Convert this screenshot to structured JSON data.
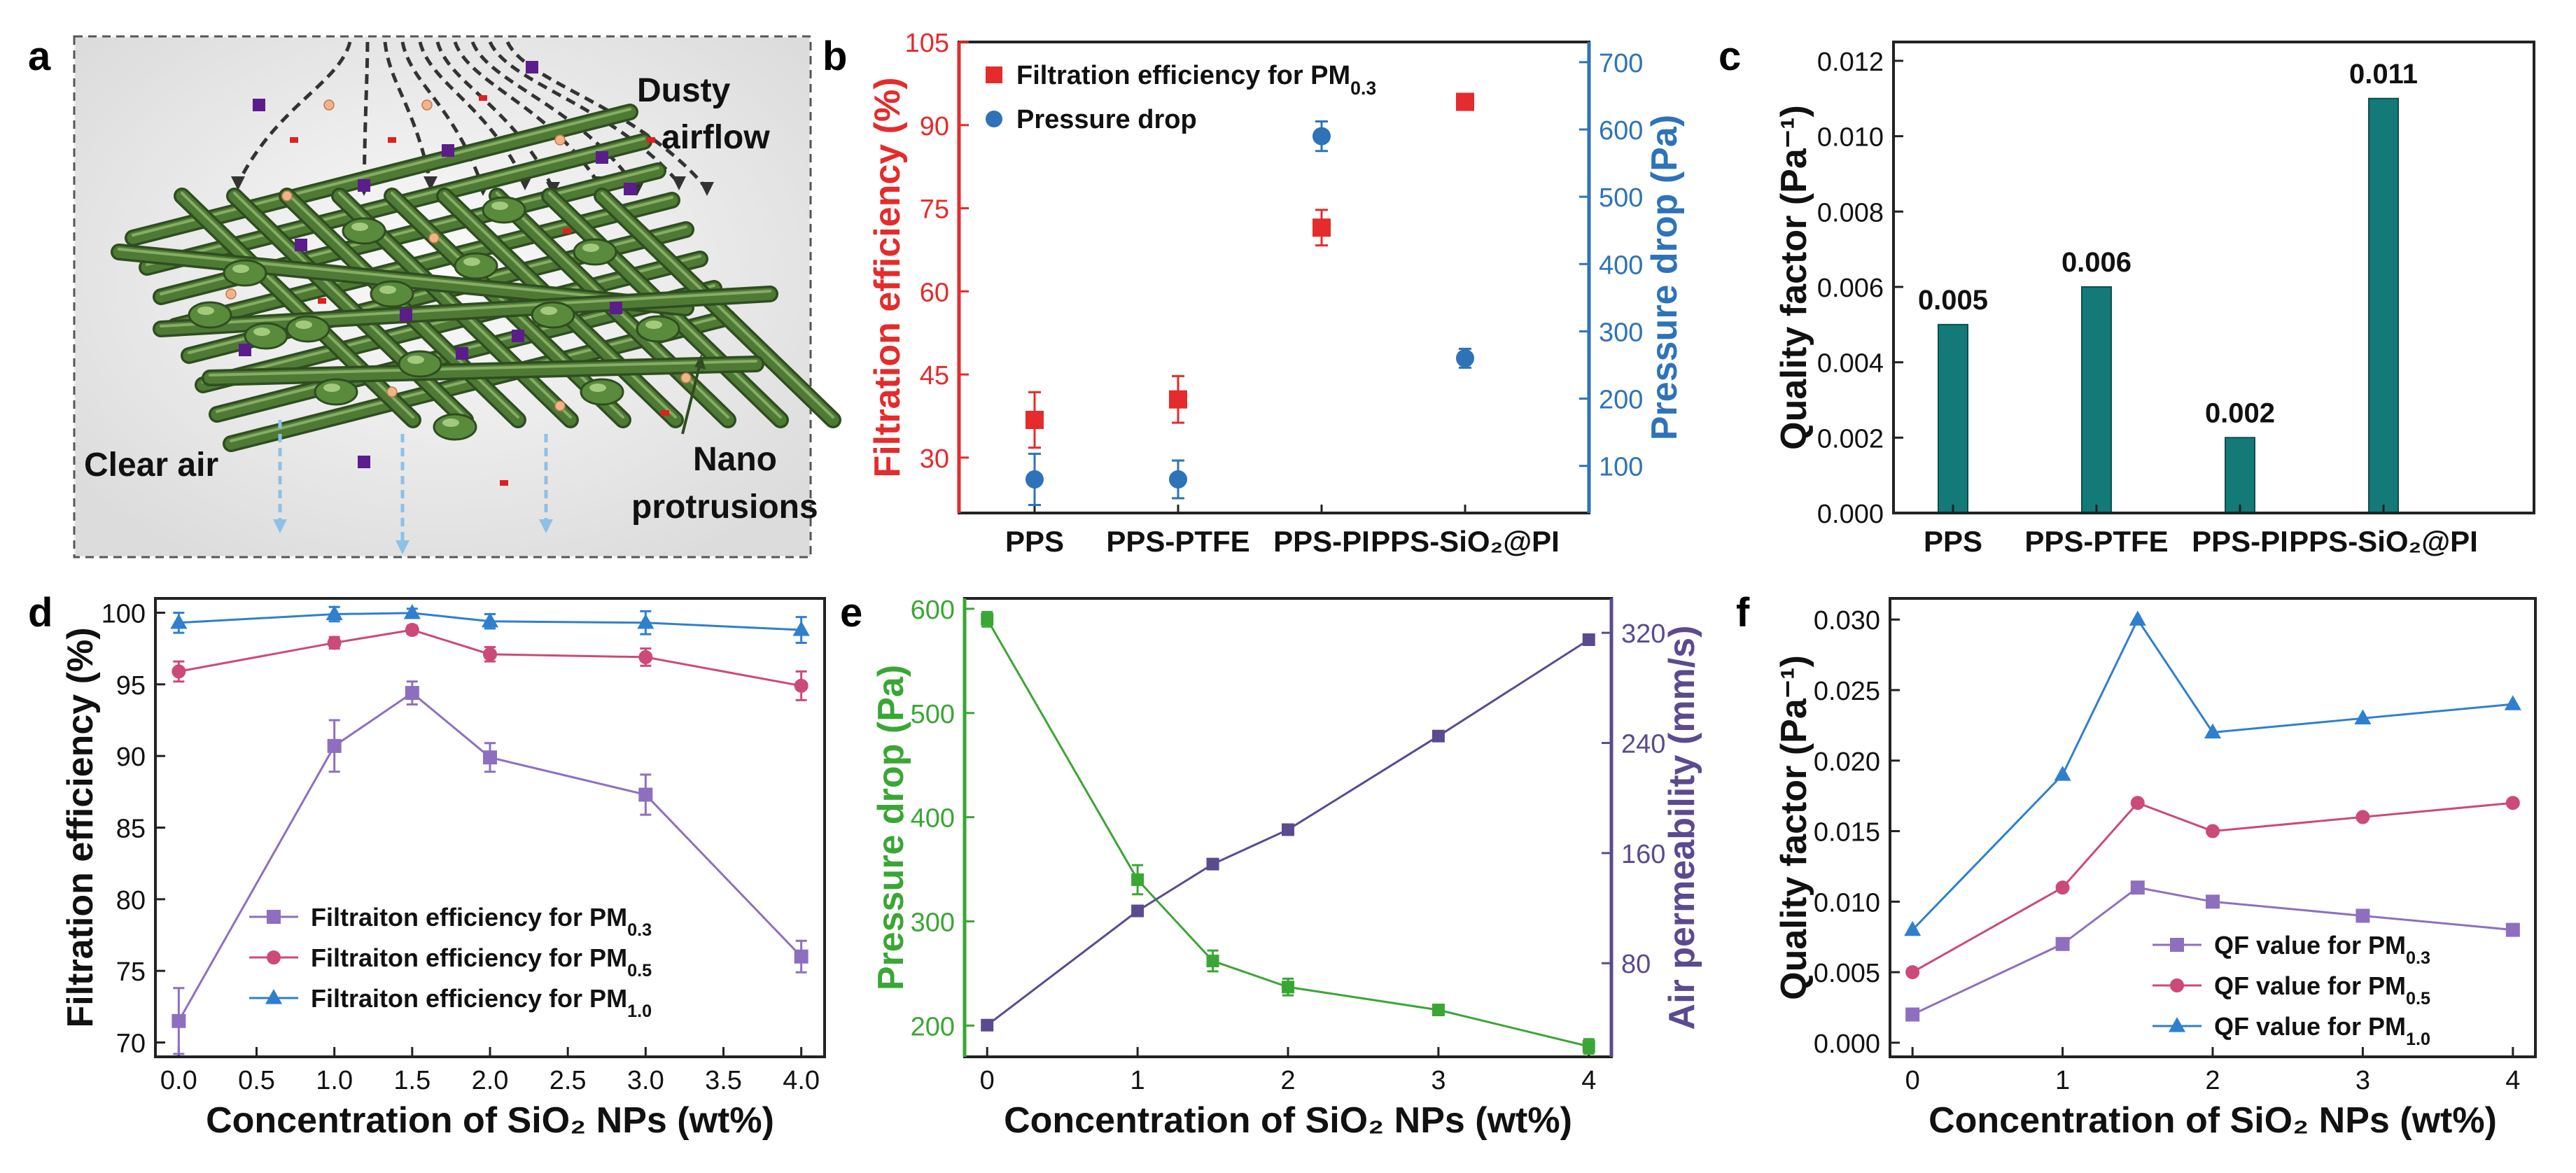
{
  "colors": {
    "red": "#e52b2b",
    "blue": "#2e73b8",
    "teal": "#137a78",
    "purple": "#8e6fbf",
    "pink": "#cc4a78",
    "lightblue": "#2f7fcf",
    "green": "#3aa635",
    "violet": "#5b4a8f",
    "fiber": "#4f7a36",
    "arrow": "#333333",
    "dropArrow": "#8fc0e6"
  },
  "panel_a": {
    "label": "a",
    "dusty1": "Dusty",
    "dusty2": "airflow",
    "clear": "Clear air",
    "nano1": "Nano",
    "nano2": "protrusions"
  },
  "chart_data": [
    {
      "id": "b",
      "panel_label": "b",
      "type": "scatter",
      "categories": [
        "PPS",
        "PPS-PTFE",
        "PPS-PI",
        "PPS-SiO₂@PI"
      ],
      "ylabel": "Filtration efficiency (%)",
      "ylabel2": "Pressure drop (Pa)",
      "ylim": [
        20,
        105
      ],
      "yticks": [
        30,
        45,
        60,
        75,
        90,
        105
      ],
      "y2lim": [
        30,
        730
      ],
      "y2ticks": [
        100,
        200,
        300,
        400,
        500,
        600,
        700
      ],
      "legend_position": "top-left",
      "series": [
        {
          "name": "Filtration efficiency for PM",
          "sub": "0.3",
          "axis": "left",
          "marker": "square",
          "values": [
            36.8,
            40.5,
            71.5,
            94.2
          ],
          "errors": [
            5.0,
            4.2,
            3.2,
            1.2
          ]
        },
        {
          "name": "Pressure drop",
          "axis": "right",
          "marker": "circle",
          "values": [
            80,
            80,
            590,
            260
          ],
          "errors": [
            38,
            28,
            22,
            14
          ]
        }
      ]
    },
    {
      "id": "c",
      "panel_label": "c",
      "type": "bar",
      "categories": [
        "PPS",
        "PPS-PTFE",
        "PPS-PI",
        "PPS-SiO₂@PI"
      ],
      "values": [
        0.005,
        0.006,
        0.002,
        0.011
      ],
      "value_labels": [
        "0.005",
        "0.006",
        "0.002",
        "0.011"
      ],
      "ylabel": "Quality factor (Pa⁻¹)",
      "ylim": [
        0,
        0.0125
      ],
      "yticks": [
        "0.000",
        "0.002",
        "0.004",
        "0.006",
        "0.008",
        "0.010",
        "0.012"
      ]
    },
    {
      "id": "d",
      "panel_label": "d",
      "type": "line",
      "x": [
        0,
        1,
        1.5,
        2,
        3,
        4
      ],
      "xlabel": "Concentration of SiO₂ NPs (wt%)",
      "ylabel": "Filtration efficiency (%)",
      "xlim": [
        -0.15,
        4.15
      ],
      "xticks": [
        "0.0",
        "0.5",
        "1.0",
        "1.5",
        "2.0",
        "2.5",
        "3.0",
        "3.5",
        "4.0"
      ],
      "ylim": [
        69,
        101
      ],
      "yticks": [
        70,
        75,
        80,
        85,
        90,
        95,
        100
      ],
      "legend_position": "bottom-left",
      "series": [
        {
          "name": "Filtraiton efficiency for PM",
          "sub": "0.3",
          "marker": "square",
          "values": [
            71.5,
            90.7,
            94.4,
            89.9,
            87.3,
            76.0
          ],
          "errors": [
            2.3,
            1.8,
            0.8,
            1.0,
            1.4,
            1.1
          ]
        },
        {
          "name": "Filtraiton efficiency for PM",
          "sub": "0.5",
          "marker": "circle",
          "values": [
            95.9,
            97.9,
            98.8,
            97.1,
            96.9,
            94.9
          ],
          "errors": [
            0.7,
            0.4,
            0.3,
            0.5,
            0.6,
            1.0
          ]
        },
        {
          "name": "Filtraiton efficiency for PM",
          "sub": "1.0",
          "marker": "triangle",
          "values": [
            99.3,
            99.9,
            99.98,
            99.4,
            99.3,
            98.8
          ],
          "errors": [
            0.7,
            0.5,
            0.3,
            0.5,
            0.8,
            0.9
          ]
        }
      ]
    },
    {
      "id": "e",
      "panel_label": "e",
      "type": "line",
      "x": [
        0,
        1,
        1.5,
        2,
        3,
        4
      ],
      "xlabel": "Concentration of SiO₂ NPs (wt%)",
      "xlim": [
        -0.15,
        4.15
      ],
      "xticks": [
        "0",
        "1",
        "2",
        "3",
        "4"
      ],
      "ylabel": "Pressure drop (Pa)",
      "ylabel2": "Air permeability (mm/s)",
      "ylim": [
        170,
        610
      ],
      "yticks": [
        200,
        300,
        400,
        500,
        600
      ],
      "y2lim": [
        12,
        345
      ],
      "y2ticks": [
        80,
        160,
        240,
        320
      ],
      "series": [
        {
          "name": "Pressure drop",
          "axis": "left",
          "marker": "square",
          "values": [
            590,
            340,
            262,
            237,
            215,
            180
          ],
          "errors": [
            7,
            14,
            10,
            8,
            5,
            7
          ]
        },
        {
          "name": "Air permeability",
          "axis": "right",
          "marker": "square",
          "values": [
            35,
            118,
            152,
            177,
            245,
            315
          ],
          "errors": [
            0,
            0,
            0,
            0,
            0,
            0
          ]
        }
      ]
    },
    {
      "id": "f",
      "panel_label": "f",
      "type": "line",
      "x": [
        0,
        1,
        1.5,
        2,
        3,
        4
      ],
      "xlabel": "Concentration of SiO₂ NPs (wt%)",
      "ylabel": "Quality factor (Pa⁻¹)",
      "xlim": [
        -0.15,
        4.15
      ],
      "xticks": [
        "0",
        "1",
        "2",
        "3",
        "4"
      ],
      "ylim": [
        -0.001,
        0.0315
      ],
      "yticks": [
        "0.000",
        "0.005",
        "0.010",
        "0.015",
        "0.020",
        "0.025",
        "0.030"
      ],
      "legend_position": "bottom-right",
      "series": [
        {
          "name": "QF value for PM",
          "sub": "0.3",
          "marker": "square",
          "values": [
            0.002,
            0.007,
            0.011,
            0.01,
            0.009,
            0.008
          ]
        },
        {
          "name": "QF value for PM",
          "sub": "0.5",
          "marker": "circle",
          "values": [
            0.005,
            0.011,
            0.017,
            0.015,
            0.016,
            0.017
          ]
        },
        {
          "name": "QF value for PM",
          "sub": "1.0",
          "marker": "triangle",
          "values": [
            0.008,
            0.019,
            0.03,
            0.022,
            0.023,
            0.024
          ]
        }
      ]
    }
  ]
}
